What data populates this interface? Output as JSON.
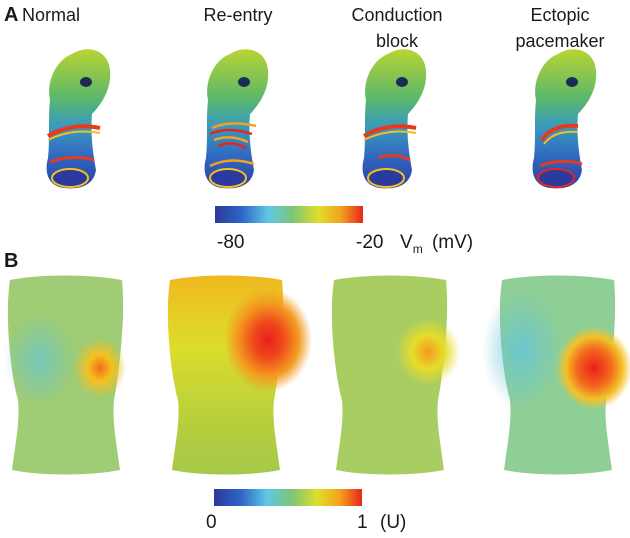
{
  "panel_a": {
    "letter": "A",
    "columns": [
      {
        "title": "Normal"
      },
      {
        "title": "Re-entry"
      },
      {
        "title": "Conduction\nblock"
      },
      {
        "title": "Ectopic\npacemaker"
      }
    ],
    "colorbar": {
      "min_label": "-80",
      "max_label": "-20",
      "unit_symbol": "V",
      "unit_subscript": "m",
      "unit_suffix": "(mV)"
    }
  },
  "panel_b": {
    "letter": "B",
    "colorbar": {
      "min_label": "0",
      "max_label": "1",
      "unit_suffix": "(U)"
    }
  },
  "colors": {
    "jet_stops": [
      "#2b3a9b",
      "#2f64c8",
      "#5ec8e6",
      "#7cc47a",
      "#dede2a",
      "#f3a21e",
      "#e8251b"
    ]
  }
}
